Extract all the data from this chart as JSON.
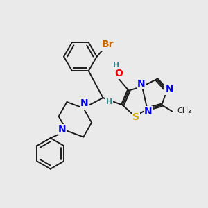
{
  "background_color": "#eaeaea",
  "bond_color": "#1a1a1a",
  "atom_colors": {
    "N": "#0000ee",
    "O": "#ee0000",
    "S": "#ccaa00",
    "Br": "#cc6600",
    "H": "#2e8b8b",
    "C_label": "#1a1a1a"
  },
  "font_size_atoms": 10,
  "font_size_small": 8,
  "line_width": 1.4
}
